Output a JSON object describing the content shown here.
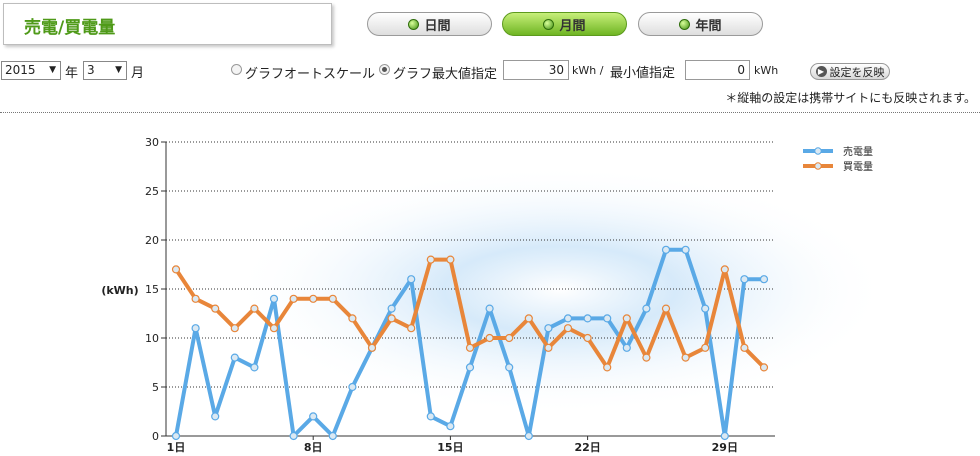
{
  "header": {
    "title": "売電/買電量"
  },
  "tabs": [
    {
      "label": "日間",
      "active": false
    },
    {
      "label": "月間",
      "active": true
    },
    {
      "label": "年間",
      "active": false
    }
  ],
  "controls": {
    "year_value": "2015",
    "year_unit": "年",
    "month_value": "3",
    "month_unit": "月",
    "radio_auto_label": "グラフオートスケール",
    "radio_max_label": "グラフ最大値指定",
    "max_value": "30",
    "max_unit": "kWh /",
    "min_label": "最小値指定",
    "min_value": "0",
    "min_unit": "kWh",
    "apply_label": "設定を反映",
    "note": "＊縦軸の設定は携帯サイトにも反映されます。"
  },
  "chart_data": {
    "type": "line",
    "ylabel": "(kWh)",
    "ylim": [
      0,
      30
    ],
    "yticks": [
      0,
      5,
      10,
      15,
      20,
      25,
      30
    ],
    "x": [
      1,
      2,
      3,
      4,
      5,
      6,
      7,
      8,
      9,
      10,
      11,
      12,
      13,
      14,
      15,
      16,
      17,
      18,
      19,
      20,
      21,
      22,
      23,
      24,
      25,
      26,
      27,
      28,
      29,
      30,
      31
    ],
    "xtick_labels": [
      {
        "x": 1,
        "label": "1日"
      },
      {
        "x": 8,
        "label": "8日"
      },
      {
        "x": 15,
        "label": "15日"
      },
      {
        "x": 22,
        "label": "22日"
      },
      {
        "x": 29,
        "label": "29日"
      }
    ],
    "legend_position": "top-right",
    "grid": "horizontal dotted",
    "series": [
      {
        "name": "売電量",
        "color": "#5aa9e6",
        "values": [
          0,
          11,
          2,
          8,
          7,
          14,
          0,
          2,
          0,
          5,
          9,
          13,
          16,
          2,
          1,
          7,
          13,
          7,
          0,
          11,
          12,
          12,
          12,
          9,
          13,
          19,
          19,
          13,
          0,
          16,
          16
        ]
      },
      {
        "name": "買電量",
        "color": "#e8863a",
        "values": [
          17,
          14,
          13,
          11,
          13,
          11,
          14,
          14,
          14,
          12,
          9,
          12,
          11,
          18,
          18,
          9,
          10,
          10,
          12,
          9,
          11,
          10,
          7,
          12,
          8,
          13,
          8,
          9,
          17,
          9,
          7
        ]
      }
    ]
  }
}
